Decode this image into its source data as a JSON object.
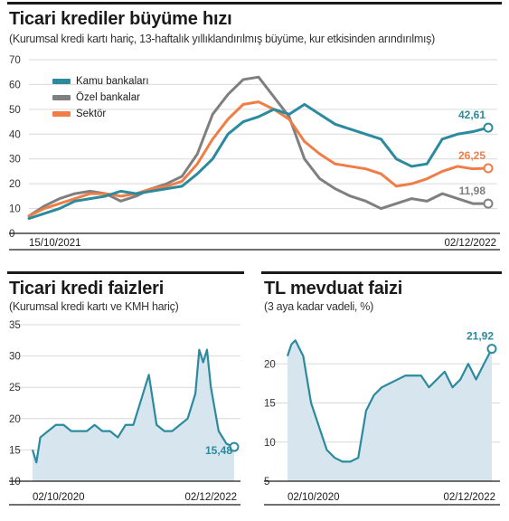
{
  "colors": {
    "kamu": "#2b8a9e",
    "ozel": "#7f7f7f",
    "sektor": "#ef7d45",
    "area": "#d7e6ee",
    "grid": "#d9d9d9",
    "axis": "#1a1a1a"
  },
  "chart_data": [
    {
      "type": "line",
      "title": "Ticari krediler büyüme hızı",
      "subtitle": "(Kurumsal kredi kartı hariç, 13-haftalık yıllıklandırılmış büyüme, kur etkisinden arındırılmış)",
      "ylim": [
        0,
        70
      ],
      "yticks": [
        "0",
        "10",
        "20",
        "30",
        "40",
        "50",
        "60",
        "70"
      ],
      "x_start": "15/10/2021",
      "x_end": "02/12/2022",
      "xlim": [
        0,
        60
      ],
      "legend": "top-left",
      "series": [
        {
          "name": "Kamu bankaları",
          "color": "#2b8a9e",
          "end_label": "42,61",
          "x": [
            0,
            2,
            4,
            6,
            8,
            10,
            12,
            14,
            16,
            18,
            20,
            22,
            24,
            26,
            28,
            30,
            32,
            34,
            36,
            38,
            40,
            42,
            44,
            46,
            48,
            50,
            52,
            54,
            56,
            58,
            60
          ],
          "values": [
            6,
            8,
            10,
            13,
            14,
            15,
            17,
            16,
            17,
            18,
            19,
            24,
            30,
            40,
            45,
            47,
            50,
            48,
            52,
            48,
            44,
            42,
            40,
            38,
            30,
            27,
            28,
            38,
            40,
            41,
            42.61
          ]
        },
        {
          "name": "Özel bankalar",
          "color": "#7f7f7f",
          "end_label": "11,98",
          "x": [
            0,
            2,
            4,
            6,
            8,
            10,
            12,
            14,
            16,
            18,
            20,
            22,
            24,
            26,
            28,
            30,
            32,
            34,
            36,
            38,
            40,
            42,
            44,
            46,
            48,
            50,
            52,
            54,
            56,
            58,
            60
          ],
          "values": [
            7,
            11,
            14,
            16,
            17,
            16,
            13,
            15,
            18,
            20,
            23,
            32,
            48,
            56,
            62,
            63,
            55,
            47,
            30,
            22,
            18,
            15,
            13,
            10,
            12,
            14,
            13,
            16,
            14,
            12,
            11.98
          ]
        },
        {
          "name": "Sektör",
          "color": "#ef7d45",
          "end_label": "26,25",
          "x": [
            0,
            2,
            4,
            6,
            8,
            10,
            12,
            14,
            16,
            18,
            20,
            22,
            24,
            26,
            28,
            30,
            32,
            34,
            36,
            38,
            40,
            42,
            44,
            46,
            48,
            50,
            52,
            54,
            56,
            58,
            60
          ],
          "values": [
            7,
            10,
            12,
            14,
            16,
            16,
            15,
            16,
            18,
            19,
            21,
            28,
            38,
            46,
            52,
            53,
            50,
            46,
            37,
            32,
            28,
            27,
            26,
            24,
            19,
            20,
            22,
            25,
            27,
            26,
            26.25
          ]
        }
      ]
    },
    {
      "type": "area",
      "title": "Ticari kredi faizleri",
      "subtitle": "(Kurumsal kredi kartı ve KMH hariç)",
      "ylim": [
        10,
        35
      ],
      "yticks": [
        "10",
        "15",
        "20",
        "25",
        "30",
        "35"
      ],
      "x_start": "02/10/2020",
      "x_end": "02/12/2022",
      "xlim": [
        0,
        26
      ],
      "end_label": "15,48",
      "x": [
        0,
        0.5,
        1,
        2,
        3,
        4,
        5,
        6,
        7,
        8,
        9,
        10,
        11,
        12,
        13,
        14,
        15,
        16,
        17,
        18,
        19,
        20,
        21,
        21.5,
        22,
        22.5,
        23,
        24,
        25,
        26
      ],
      "values": [
        15,
        13,
        17,
        18,
        19,
        19,
        18,
        18,
        18,
        19,
        18,
        18,
        17,
        19,
        19,
        23,
        27,
        19,
        18,
        18,
        19,
        20,
        24,
        31,
        29,
        31,
        25,
        18,
        16,
        15.48
      ]
    },
    {
      "type": "area",
      "title": "TL mevduat faizi",
      "subtitle": "(3 aya kadar vadeli, %)",
      "ylim": [
        5,
        25
      ],
      "yticks": [
        "5",
        "10",
        "15",
        "20"
      ],
      "x_start": "02/10/2020",
      "x_end": "02/12/2022",
      "xlim": [
        0,
        26
      ],
      "end_label": "21,92",
      "x": [
        0,
        0.5,
        1,
        1.5,
        2,
        2.5,
        3,
        4,
        5,
        6,
        7,
        8,
        9,
        10,
        11,
        12,
        13,
        14,
        15,
        16,
        17,
        18,
        19,
        20,
        21,
        22,
        23,
        24,
        25,
        26
      ],
      "values": [
        21,
        22.5,
        23,
        22,
        21,
        18,
        15,
        12,
        9,
        8,
        7.5,
        7.5,
        8,
        14,
        16,
        17,
        17.5,
        18,
        18.5,
        18.5,
        18.5,
        17,
        18,
        19,
        17,
        18,
        20,
        18,
        20,
        21.92
      ]
    }
  ]
}
